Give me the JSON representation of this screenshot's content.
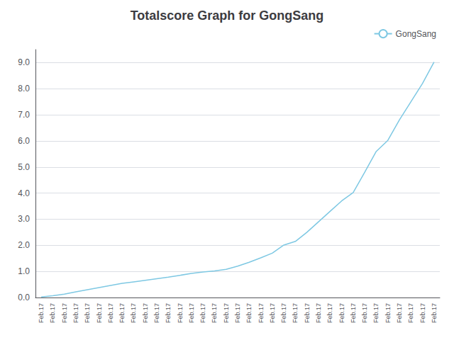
{
  "chart_data": {
    "type": "line",
    "title": "Totalscore Graph for GongSang",
    "categories": [
      "Feb.17",
      "Feb.17",
      "Feb.17",
      "Feb.17",
      "Feb.17",
      "Feb.17",
      "Feb.17",
      "Feb.17",
      "Feb.17",
      "Feb.17",
      "Feb.17",
      "Feb.17",
      "Feb.17",
      "Feb.17",
      "Feb.17",
      "Feb.17",
      "Feb.17",
      "Feb.17",
      "Feb.17",
      "Feb.17",
      "Feb.17",
      "Feb.17",
      "Feb.17",
      "Feb.17",
      "Feb.17",
      "Feb.17",
      "Feb.17",
      "Feb.17",
      "Feb.17",
      "Feb.17",
      "Feb.17",
      "Feb.17",
      "Feb.17",
      "Feb.17",
      "Feb.17"
    ],
    "series": [
      {
        "name": "GongSang",
        "color": "#7EC8E3",
        "values": [
          0.02,
          0.07,
          0.13,
          0.22,
          0.3,
          0.38,
          0.46,
          0.54,
          0.6,
          0.66,
          0.72,
          0.78,
          0.85,
          0.92,
          0.98,
          1.02,
          1.08,
          1.2,
          1.35,
          1.52,
          1.7,
          2.01,
          2.15,
          2.5,
          2.9,
          3.3,
          3.7,
          4.02,
          4.8,
          5.6,
          6.02,
          6.8,
          7.5,
          8.2,
          9.02
        ]
      }
    ],
    "ylim": [
      0.0,
      9.5
    ],
    "yticks": [
      {
        "value": 0,
        "label": "0.0"
      },
      {
        "value": 1,
        "label": "1.0"
      },
      {
        "value": 2,
        "label": "2.0"
      },
      {
        "value": 3,
        "label": "3.0"
      },
      {
        "value": 4,
        "label": "4.0"
      },
      {
        "value": 5,
        "label": "5.0"
      },
      {
        "value": 6,
        "label": "6.0"
      },
      {
        "value": 7,
        "label": "7.0"
      },
      {
        "value": 8,
        "label": "8.0"
      },
      {
        "value": 9,
        "label": "9.0"
      }
    ],
    "grid": true,
    "legend": "upper right"
  }
}
